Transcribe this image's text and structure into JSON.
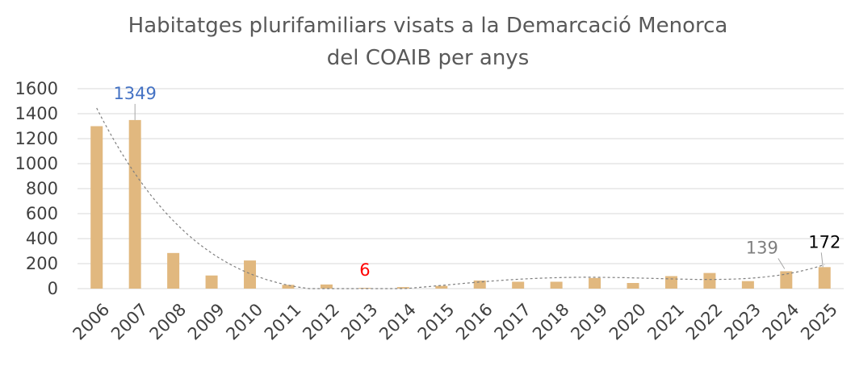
{
  "chart_data": {
    "type": "bar",
    "title_line1": "Habitatges plurifamiliars visats a la Demarcació Menorca",
    "title_line2": "del COAIB per anys",
    "xlabel": "",
    "ylabel": "",
    "ylim": [
      0,
      1600
    ],
    "yticks": [
      0,
      200,
      400,
      600,
      800,
      1000,
      1200,
      1400,
      1600
    ],
    "categories": [
      "2006",
      "2007",
      "2008",
      "2009",
      "2010",
      "2011",
      "2012",
      "2013",
      "2014",
      "2015",
      "2016",
      "2017",
      "2018",
      "2019",
      "2020",
      "2021",
      "2022",
      "2023",
      "2024",
      "2025"
    ],
    "values": [
      1300,
      1349,
      285,
      105,
      225,
      30,
      33,
      6,
      12,
      22,
      65,
      55,
      55,
      85,
      45,
      100,
      125,
      60,
      139,
      172
    ],
    "trendline": "polynomial",
    "grid": true,
    "annotations": [
      {
        "category": "2007",
        "label": "1349",
        "color": "#4472c4"
      },
      {
        "category": "2013",
        "label": "6",
        "color": "#ff0000"
      },
      {
        "category": "2024",
        "label": "139",
        "color": "#7f7f7f"
      },
      {
        "category": "2025",
        "label": "172",
        "color": "#000000"
      }
    ],
    "colors": {
      "bar": "#e1b87f",
      "grid": "#d9d9d9",
      "trend": "#7f7f7f"
    }
  }
}
